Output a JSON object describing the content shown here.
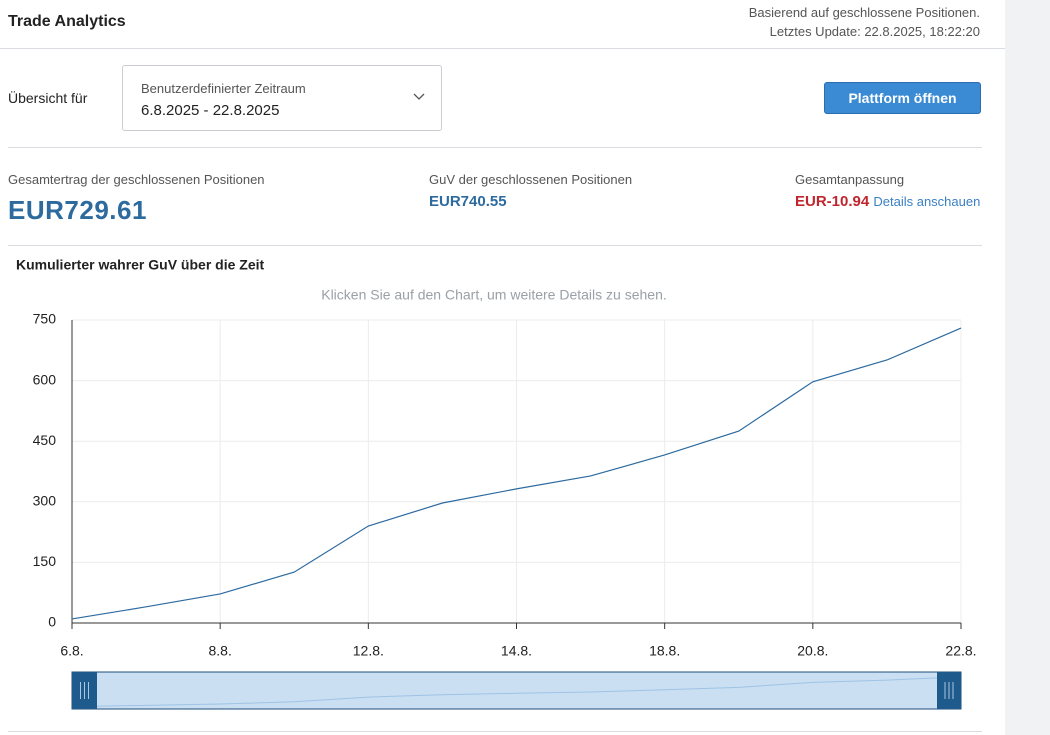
{
  "header": {
    "title": "Trade Analytics",
    "note": "Basierend auf geschlossene Positionen.",
    "last_update": "Letztes Update: 22.8.2025, 18:22:20"
  },
  "filter": {
    "label": "Übersicht für",
    "dropdown_label": "Benutzerdefinierter Zeitraum",
    "dropdown_value": "6.8.2025 - 22.8.2025",
    "button": "Plattform öffnen"
  },
  "stats": [
    {
      "label": "Gesamtertrag der geschlossenen Positionen",
      "value": "EUR729.61"
    },
    {
      "label": "GuV der geschlossenen Positionen",
      "value": "EUR740.55"
    },
    {
      "label": "Gesamtanpassung",
      "value": "EUR-10.94",
      "link": "Details anschauen"
    }
  ],
  "chart_data": {
    "type": "line",
    "title": "Kumulierter wahrer GuV über die Zeit",
    "subtitle": "Klicken Sie auf den Chart, um weitere Details zu sehen.",
    "categories": [
      "6.8.",
      null,
      "8.8.",
      null,
      "12.8.",
      null,
      "14.8.",
      null,
      "18.8.",
      null,
      "20.8.",
      null,
      "22.8."
    ],
    "values": [
      10,
      40,
      72,
      126,
      240,
      297,
      332,
      364,
      416,
      475,
      597,
      651,
      730
    ],
    "color": "#2c6aa0",
    "ylim": [
      0,
      750
    ],
    "yticks": [
      0,
      150,
      300,
      450,
      600,
      750
    ],
    "grid": true
  }
}
